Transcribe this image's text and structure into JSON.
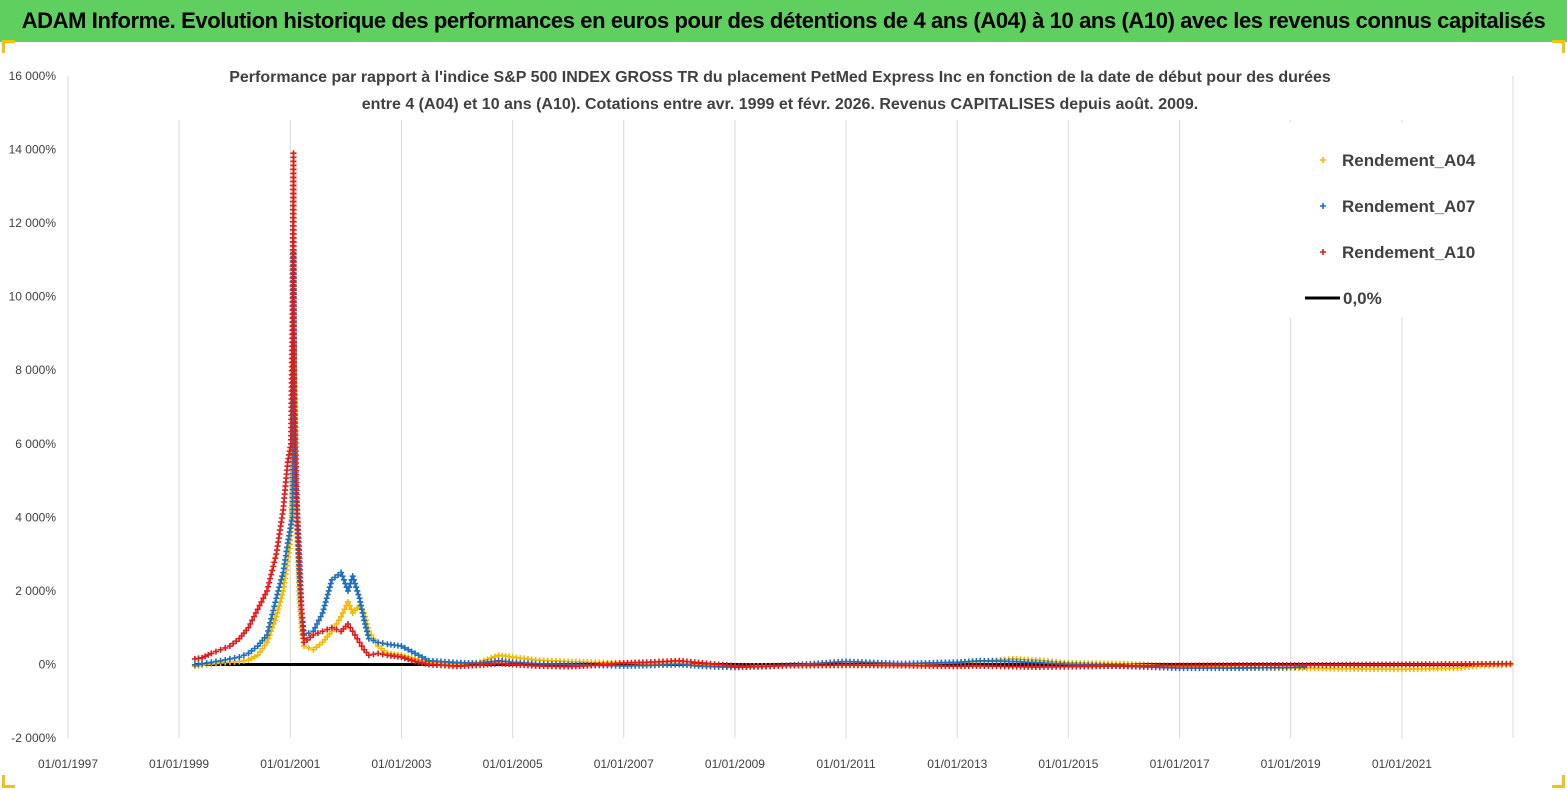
{
  "header": {
    "banner_text": "ADAM Informe. Evolution historique des performances en euros pour des détentions de 4 ans (A04) à 10 ans (A10) avec les revenus connus capitalisés"
  },
  "colors": {
    "banner": "#5fcf5f",
    "A04": "#f5b800",
    "A07": "#1f6fbf",
    "A10": "#e31a1c",
    "zero_line": "#000000",
    "grid": "#d9d9d9"
  },
  "chart_data": {
    "type": "scatter",
    "title_line1": "Performance par rapport à l'indice S&P 500 INDEX GROSS TR  du placement PetMed Express Inc en fonction de la date de début pour des durées",
    "title_line2": "entre 4 (A04) et 10 ans (A10). Cotations entre avr. 1999 et févr. 2026. Revenus CAPITALISES depuis août. 2009.",
    "x_axis": {
      "type": "date",
      "min": "1997-01-01",
      "max": "2023-01-01",
      "tick_labels": [
        "01/01/1997",
        "01/01/1999",
        "01/01/2001",
        "01/01/2003",
        "01/01/2005",
        "01/01/2007",
        "01/01/2009",
        "01/01/2011",
        "01/01/2013",
        "01/01/2015",
        "01/01/2017",
        "01/01/2019",
        "01/01/2021"
      ]
    },
    "y_axis": {
      "min": -2000,
      "max": 16000,
      "step": 2000,
      "unit": "%",
      "tick_labels": [
        "-2 000%",
        "0%",
        "2 000%",
        "4 000%",
        "6 000%",
        "8 000%",
        "10 000%",
        "12 000%",
        "14 000%",
        "16 000%"
      ]
    },
    "gridlines": "vertical",
    "legend_position": "top-right",
    "legend": [
      {
        "label": "Rendement_A04",
        "marker": "+",
        "color": "#f5b800"
      },
      {
        "label": "Rendement_A07",
        "marker": "+",
        "color": "#1f6fbf"
      },
      {
        "label": "Rendement_A10",
        "marker": "+",
        "color": "#e31a1c"
      },
      {
        "label": "0,0%",
        "marker": "line",
        "color": "#000000"
      }
    ],
    "series": [
      {
        "name": "Rendement_A04",
        "points": [
          [
            "1999-04-15",
            -50
          ],
          [
            "1999-06-01",
            -20
          ],
          [
            "1999-08-01",
            10
          ],
          [
            "1999-10-01",
            40
          ],
          [
            "1999-12-01",
            60
          ],
          [
            "2000-02-01",
            80
          ],
          [
            "2000-04-01",
            120
          ],
          [
            "2000-06-01",
            250
          ],
          [
            "2000-08-01",
            600
          ],
          [
            "2000-10-01",
            1300
          ],
          [
            "2000-11-15",
            2000
          ],
          [
            "2000-12-15",
            2800
          ],
          [
            "2001-01-05",
            3500
          ],
          [
            "2001-01-15",
            4500
          ],
          [
            "2001-01-20",
            6000
          ],
          [
            "2001-01-25",
            8700
          ],
          [
            "2001-02-01",
            5000
          ],
          [
            "2001-02-10",
            4000
          ],
          [
            "2001-02-20",
            3000
          ],
          [
            "2001-03-01",
            2000
          ],
          [
            "2001-03-15",
            1000
          ],
          [
            "2001-04-01",
            500
          ],
          [
            "2001-06-01",
            400
          ],
          [
            "2001-08-01",
            600
          ],
          [
            "2001-10-01",
            900
          ],
          [
            "2001-12-01",
            1300
          ],
          [
            "2002-01-15",
            1700
          ],
          [
            "2002-02-15",
            1400
          ],
          [
            "2002-04-01",
            1600
          ],
          [
            "2002-05-01",
            1400
          ],
          [
            "2002-06-01",
            900
          ],
          [
            "2002-08-01",
            500
          ],
          [
            "2002-10-01",
            300
          ],
          [
            "2003-01-01",
            250
          ],
          [
            "2003-04-01",
            150
          ],
          [
            "2003-07-01",
            50
          ],
          [
            "2004-01-01",
            0
          ],
          [
            "2004-06-01",
            60
          ],
          [
            "2004-10-01",
            250
          ],
          [
            "2005-01-01",
            200
          ],
          [
            "2005-06-01",
            120
          ],
          [
            "2006-01-01",
            80
          ],
          [
            "2006-06-01",
            60
          ],
          [
            "2007-01-01",
            40
          ],
          [
            "2007-06-01",
            20
          ],
          [
            "2008-01-01",
            30
          ],
          [
            "2008-06-01",
            -20
          ],
          [
            "2009-01-01",
            -60
          ],
          [
            "2009-06-01",
            -40
          ],
          [
            "2010-01-01",
            -30
          ],
          [
            "2011-01-01",
            -20
          ],
          [
            "2012-01-01",
            -10
          ],
          [
            "2013-01-01",
            50
          ],
          [
            "2013-06-01",
            80
          ],
          [
            "2014-01-01",
            150
          ],
          [
            "2014-06-01",
            120
          ],
          [
            "2015-01-01",
            40
          ],
          [
            "2016-01-01",
            20
          ],
          [
            "2017-01-01",
            -50
          ],
          [
            "2018-01-01",
            -80
          ],
          [
            "2019-01-01",
            -100
          ],
          [
            "2020-01-01",
            -120
          ],
          [
            "2021-01-01",
            -130
          ],
          [
            "2022-01-01",
            -100
          ],
          [
            "2022-06-01",
            -30
          ],
          [
            "2022-12-15",
            -20
          ]
        ]
      },
      {
        "name": "Rendement_A07",
        "points": [
          [
            "1999-04-15",
            -10
          ],
          [
            "1999-06-01",
            20
          ],
          [
            "1999-08-01",
            60
          ],
          [
            "1999-10-01",
            100
          ],
          [
            "1999-12-01",
            150
          ],
          [
            "2000-02-01",
            200
          ],
          [
            "2000-04-01",
            300
          ],
          [
            "2000-06-01",
            500
          ],
          [
            "2000-08-01",
            800
          ],
          [
            "2000-10-01",
            1800
          ],
          [
            "2000-11-15",
            2500
          ],
          [
            "2000-12-15",
            3300
          ],
          [
            "2001-01-05",
            3800
          ],
          [
            "2001-01-15",
            4000
          ],
          [
            "2001-01-20",
            9200
          ],
          [
            "2001-01-22",
            11200
          ],
          [
            "2001-01-28",
            6600
          ],
          [
            "2001-02-05",
            5000
          ],
          [
            "2001-02-15",
            4000
          ],
          [
            "2001-03-01",
            2500
          ],
          [
            "2001-03-15",
            1500
          ],
          [
            "2001-04-01",
            800
          ],
          [
            "2001-06-01",
            900
          ],
          [
            "2001-08-01",
            1400
          ],
          [
            "2001-10-01",
            2300
          ],
          [
            "2001-12-01",
            2500
          ],
          [
            "2002-01-15",
            2000
          ],
          [
            "2002-02-15",
            2400
          ],
          [
            "2002-04-01",
            1800
          ],
          [
            "2002-05-01",
            1200
          ],
          [
            "2002-06-01",
            700
          ],
          [
            "2002-08-01",
            600
          ],
          [
            "2002-10-01",
            550
          ],
          [
            "2003-01-01",
            500
          ],
          [
            "2003-04-01",
            300
          ],
          [
            "2003-07-01",
            100
          ],
          [
            "2004-01-01",
            50
          ],
          [
            "2004-06-01",
            30
          ],
          [
            "2004-10-01",
            100
          ],
          [
            "2005-01-01",
            60
          ],
          [
            "2005-06-01",
            20
          ],
          [
            "2006-01-01",
            0
          ],
          [
            "2006-06-01",
            -20
          ],
          [
            "2007-01-01",
            -40
          ],
          [
            "2007-06-01",
            -30
          ],
          [
            "2008-01-01",
            0
          ],
          [
            "2008-06-01",
            -50
          ],
          [
            "2009-01-01",
            -80
          ],
          [
            "2009-06-01",
            -60
          ],
          [
            "2010-01-01",
            -20
          ],
          [
            "2011-01-01",
            80
          ],
          [
            "2012-01-01",
            20
          ],
          [
            "2013-01-01",
            60
          ],
          [
            "2013-06-01",
            100
          ],
          [
            "2014-01-01",
            80
          ],
          [
            "2014-06-01",
            50
          ],
          [
            "2015-01-01",
            0
          ],
          [
            "2016-01-01",
            -50
          ],
          [
            "2017-01-01",
            -100
          ],
          [
            "2018-01-01",
            -100
          ],
          [
            "2019-01-01",
            -80
          ],
          [
            "2019-04-01",
            -60
          ]
        ]
      },
      {
        "name": "Rendement_A10",
        "points": [
          [
            "1999-04-15",
            150
          ],
          [
            "1999-06-01",
            180
          ],
          [
            "1999-08-01",
            300
          ],
          [
            "1999-10-01",
            400
          ],
          [
            "1999-12-01",
            500
          ],
          [
            "2000-02-01",
            700
          ],
          [
            "2000-04-01",
            1000
          ],
          [
            "2000-06-01",
            1500
          ],
          [
            "2000-08-01",
            2000
          ],
          [
            "2000-10-01",
            3000
          ],
          [
            "2000-11-15",
            4200
          ],
          [
            "2000-12-15",
            5500
          ],
          [
            "2001-01-05",
            6000
          ],
          [
            "2001-01-15",
            9200
          ],
          [
            "2001-01-18",
            11600
          ],
          [
            "2001-01-22",
            13900
          ],
          [
            "2001-01-25",
            8200
          ],
          [
            "2001-02-05",
            5800
          ],
          [
            "2001-02-15",
            4200
          ],
          [
            "2001-03-01",
            3000
          ],
          [
            "2001-03-15",
            1500
          ],
          [
            "2001-04-01",
            600
          ],
          [
            "2001-06-01",
            800
          ],
          [
            "2001-08-01",
            900
          ],
          [
            "2001-10-01",
            1000
          ],
          [
            "2001-12-01",
            900
          ],
          [
            "2002-01-15",
            1100
          ],
          [
            "2002-02-15",
            900
          ],
          [
            "2002-04-01",
            600
          ],
          [
            "2002-05-01",
            400
          ],
          [
            "2002-06-01",
            250
          ],
          [
            "2002-08-01",
            300
          ],
          [
            "2002-10-01",
            250
          ],
          [
            "2003-01-01",
            200
          ],
          [
            "2003-04-01",
            80
          ],
          [
            "2003-07-01",
            0
          ],
          [
            "2004-01-01",
            -50
          ],
          [
            "2004-06-01",
            -20
          ],
          [
            "2004-10-01",
            30
          ],
          [
            "2005-01-01",
            0
          ],
          [
            "2005-06-01",
            -40
          ],
          [
            "2006-01-01",
            -60
          ],
          [
            "2006-06-01",
            -30
          ],
          [
            "2007-01-01",
            40
          ],
          [
            "2007-06-01",
            60
          ],
          [
            "2008-01-01",
            100
          ],
          [
            "2008-06-01",
            40
          ],
          [
            "2009-01-01",
            -40
          ],
          [
            "2009-06-01",
            -60
          ],
          [
            "2010-01-01",
            -30
          ],
          [
            "2011-01-01",
            -20
          ],
          [
            "2012-01-01",
            -30
          ],
          [
            "2013-01-01",
            -50
          ],
          [
            "2013-06-01",
            -40
          ],
          [
            "2014-01-01",
            -60
          ],
          [
            "2014-06-01",
            -70
          ],
          [
            "2015-01-01",
            -60
          ],
          [
            "2016-01-01",
            -40
          ],
          [
            "2017-01-01",
            -30
          ],
          [
            "2018-01-01",
            -20
          ],
          [
            "2019-01-01",
            -20
          ],
          [
            "2020-01-01",
            -10
          ],
          [
            "2021-01-01",
            0
          ],
          [
            "2022-01-01",
            10
          ],
          [
            "2022-12-15",
            20
          ]
        ]
      }
    ],
    "reference_line": {
      "name": "0,0%",
      "y": 0,
      "x_start": "1999-04-15",
      "x_end": "2022-12-31"
    }
  }
}
